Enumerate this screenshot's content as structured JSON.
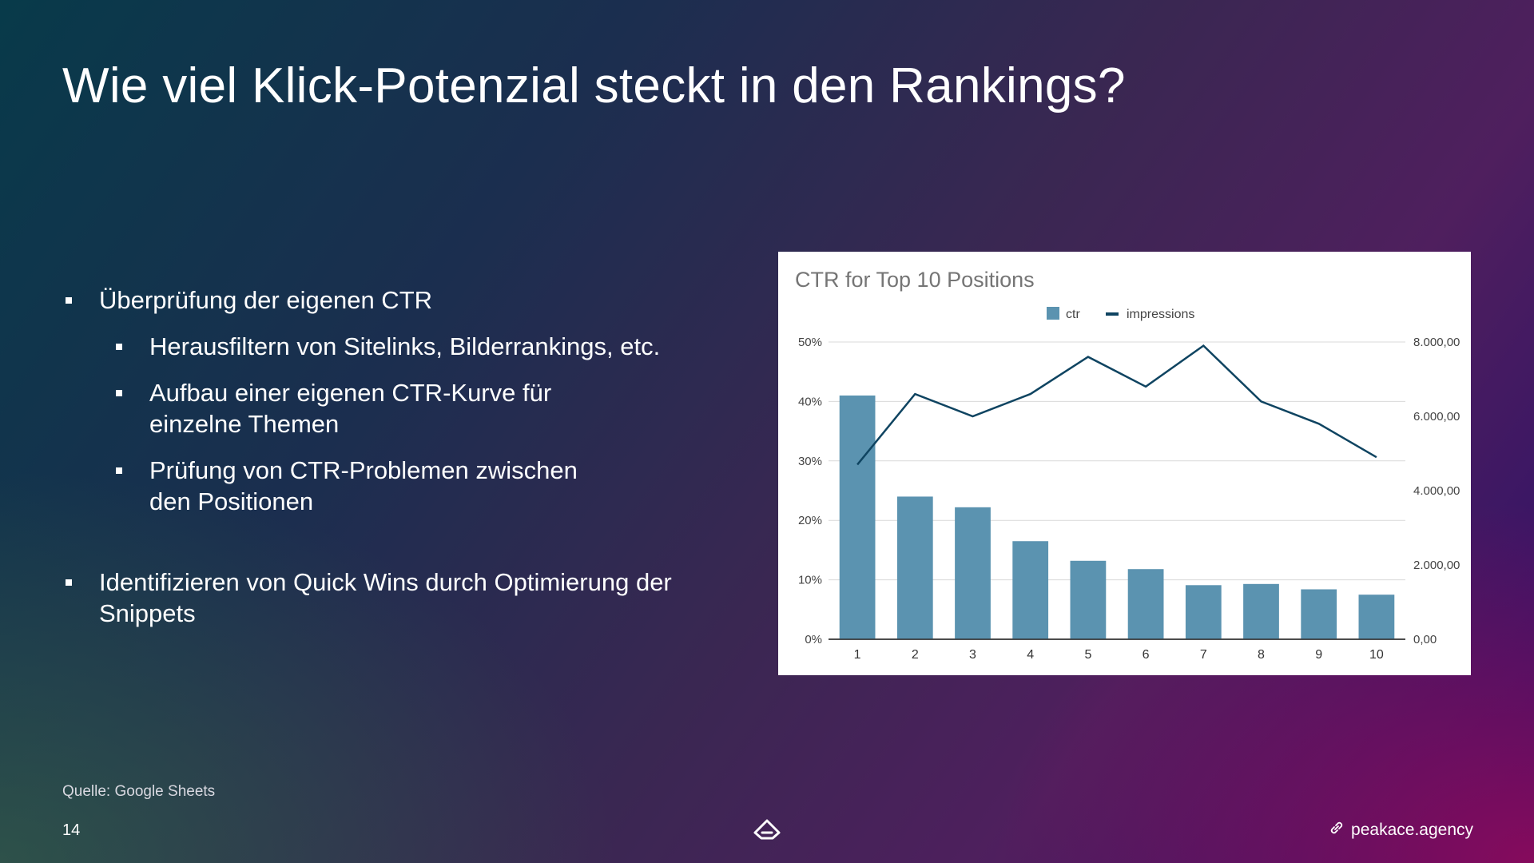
{
  "slide": {
    "title": "Wie viel Klick-Potenzial steckt in den Rankings?",
    "bullets": {
      "b1": "Überprüfung der eigenen CTR",
      "b1_sub1": "Herausfiltern von Sitelinks, Bilderrankings, etc.",
      "b1_sub2": "Aufbau einer eigenen CTR-Kurve für einzelne Themen",
      "b1_sub3": "Prüfung von CTR-Problemen zwischen den Positionen",
      "b2": "Identifizieren von Quick Wins durch Optimierung der Snippets"
    },
    "source": "Quelle: Google Sheets",
    "page_number": "14",
    "footer_link": "peakace.agency"
  },
  "icons": {
    "bullet": "square-bullet-icon",
    "logo": "peak-ace-logo-icon",
    "link": "link-icon"
  },
  "colors": {
    "bar": "#5b93b0",
    "line": "#0f4461",
    "title_gray": "#757575",
    "text": "#ffffff"
  },
  "chart_data": {
    "type": "bar",
    "title": "CTR for Top 10 Positions",
    "categories": [
      "1",
      "2",
      "3",
      "4",
      "5",
      "6",
      "7",
      "8",
      "9",
      "10"
    ],
    "series": [
      {
        "name": "ctr",
        "type": "bar",
        "axis": "left",
        "values": [
          0.41,
          0.24,
          0.222,
          0.165,
          0.132,
          0.118,
          0.091,
          0.093,
          0.084,
          0.075
        ]
      },
      {
        "name": "impressions",
        "type": "line",
        "axis": "right",
        "values": [
          4700,
          6600,
          6000,
          6600,
          7600,
          6800,
          7900,
          6400,
          5800,
          4900
        ]
      }
    ],
    "y_left": {
      "ylim": [
        0,
        0.5
      ],
      "ticks": [
        0,
        0.1,
        0.2,
        0.3,
        0.4,
        0.5
      ],
      "tick_labels": [
        "0%",
        "10%",
        "20%",
        "30%",
        "40%",
        "50%"
      ]
    },
    "y_right": {
      "ylim": [
        0,
        8000
      ],
      "ticks": [
        0,
        2000,
        4000,
        6000,
        8000
      ],
      "tick_labels": [
        "0,00",
        "2.000,00",
        "4.000,00",
        "6.000,00",
        "8.000,00"
      ]
    },
    "xlabel": "",
    "ylabel": "",
    "legend": "top-center",
    "grid": true
  }
}
